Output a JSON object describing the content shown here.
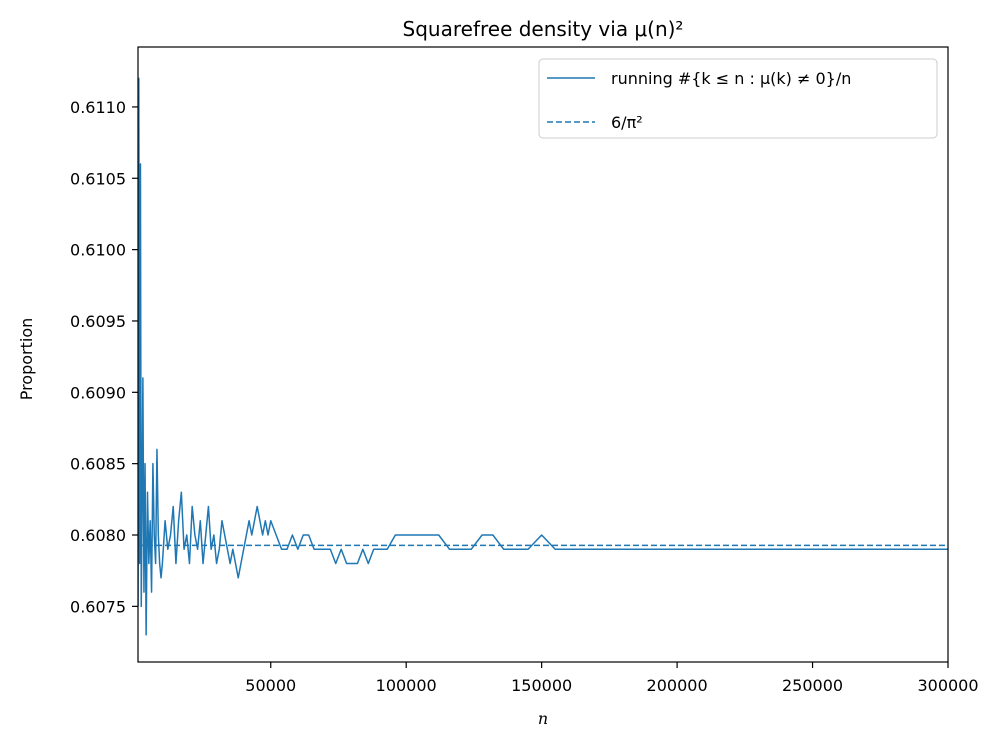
{
  "chart_data": {
    "type": "line",
    "title": "Squarefree density via μ(n)²",
    "xlabel": "n",
    "ylabel": "Proportion",
    "xlim": [
      1000,
      300000
    ],
    "ylim": [
      0.60711,
      0.61142
    ],
    "xticks": [
      50000,
      100000,
      150000,
      200000,
      250000,
      300000
    ],
    "xtick_labels": [
      "50000",
      "100000",
      "150000",
      "200000",
      "250000",
      "300000"
    ],
    "yticks": [
      0.6075,
      0.608,
      0.6085,
      0.609,
      0.6095,
      0.61,
      0.6105,
      0.611
    ],
    "ytick_labels": [
      "0.6075",
      "0.6080",
      "0.6085",
      "0.6090",
      "0.6095",
      "0.6100",
      "0.6105",
      "0.6110"
    ],
    "grid": false,
    "legend": {
      "placement": "top-right",
      "entries": [
        {
          "label": "running #{k ≤ n : μ(k) ≠ 0}/n",
          "style": "solid"
        },
        {
          "label": "6/π²",
          "style": "dashed"
        }
      ]
    },
    "colors": {
      "series": "#1f77b4"
    },
    "series": [
      {
        "name": "running #{k ≤ n : μ(k) ≠ 0}/n",
        "style": "solid",
        "x": [
          1000,
          1300,
          1600,
          1900,
          2200,
          2500,
          2800,
          3200,
          3600,
          4000,
          4500,
          5000,
          5500,
          6000,
          6500,
          7000,
          7500,
          8000,
          8500,
          9000,
          9500,
          10000,
          11000,
          12000,
          13000,
          14000,
          15000,
          16000,
          17000,
          18000,
          19000,
          20000,
          21000,
          22000,
          23000,
          24000,
          25000,
          26000,
          27000,
          28000,
          29000,
          30000,
          31000,
          32000,
          33000,
          34000,
          35000,
          36000,
          37000,
          38000,
          39000,
          40000,
          41000,
          42000,
          43000,
          44000,
          45000,
          46000,
          47000,
          48000,
          49000,
          50000,
          52000,
          54000,
          56000,
          58000,
          60000,
          62000,
          64000,
          66000,
          68000,
          70000,
          72000,
          74000,
          76000,
          78000,
          80000,
          82000,
          84000,
          86000,
          88000,
          90000,
          93000,
          96000,
          100000,
          104000,
          108000,
          112000,
          116000,
          120000,
          124000,
          128000,
          132000,
          136000,
          140000,
          145000,
          150000,
          155000,
          160000,
          165000,
          170000,
          175000,
          180000,
          185000,
          190000,
          195000,
          200000,
          205000,
          210000,
          215000,
          220000,
          225000,
          230000,
          235000,
          240000,
          245000,
          250000,
          255000,
          260000,
          265000,
          270000,
          275000,
          280000,
          285000,
          290000,
          295000,
          300000
        ],
        "y": [
          0.6075,
          0.6112,
          0.6078,
          0.6106,
          0.6075,
          0.6082,
          0.6091,
          0.6076,
          0.6085,
          0.6073,
          0.6083,
          0.6078,
          0.6081,
          0.6076,
          0.6085,
          0.608,
          0.6078,
          0.6086,
          0.608,
          0.6078,
          0.6077,
          0.6078,
          0.6081,
          0.6079,
          0.608,
          0.6082,
          0.6078,
          0.6081,
          0.6083,
          0.6079,
          0.608,
          0.6078,
          0.6082,
          0.608,
          0.6079,
          0.6081,
          0.6078,
          0.608,
          0.6082,
          0.6079,
          0.608,
          0.6078,
          0.6079,
          0.6081,
          0.608,
          0.6079,
          0.6078,
          0.6079,
          0.6078,
          0.6077,
          0.6078,
          0.6079,
          0.608,
          0.6081,
          0.608,
          0.6081,
          0.6082,
          0.6081,
          0.608,
          0.6081,
          0.608,
          0.6081,
          0.608,
          0.6079,
          0.6079,
          0.608,
          0.6079,
          0.608,
          0.608,
          0.6079,
          0.6079,
          0.6079,
          0.6079,
          0.6078,
          0.6079,
          0.6078,
          0.6078,
          0.6078,
          0.6079,
          0.6078,
          0.6079,
          0.6079,
          0.6079,
          0.608,
          0.608,
          0.608,
          0.608,
          0.608,
          0.6079,
          0.6079,
          0.6079,
          0.608,
          0.608,
          0.6079,
          0.6079,
          0.6079,
          0.608,
          0.6079,
          0.6079,
          0.6079,
          0.6079,
          0.6079,
          0.6079,
          0.6079,
          0.6079,
          0.6079,
          0.6079,
          0.6079,
          0.6079,
          0.6079,
          0.6079,
          0.6079,
          0.6079,
          0.6079,
          0.6079,
          0.6079,
          0.6079,
          0.6079,
          0.6079,
          0.6079,
          0.6079,
          0.6079,
          0.6079,
          0.6079,
          0.6079,
          0.6079,
          0.6079
        ]
      },
      {
        "name": "6/π²",
        "style": "dashed",
        "x": [
          1000,
          300000
        ],
        "y": [
          0.6079271,
          0.6079271
        ]
      }
    ]
  }
}
